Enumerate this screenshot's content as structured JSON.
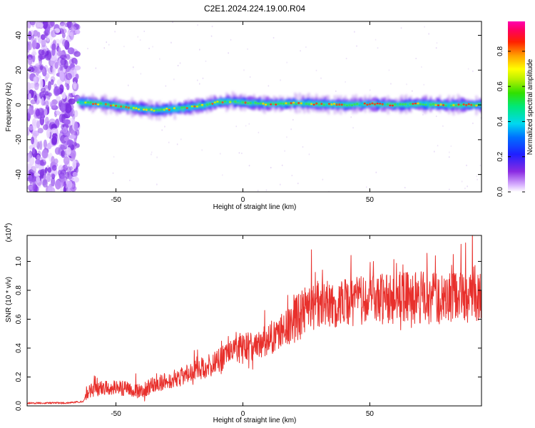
{
  "title": "C2E1.2024.224.19.00.R04",
  "chart_data": [
    {
      "type": "heatmap",
      "xlabel": "Height of straight line (km)",
      "ylabel": "Frequency (Hz)",
      "xlim": [
        -85,
        94
      ],
      "ylim": [
        -50,
        48
      ],
      "x_ticks": [
        -50,
        0,
        50
      ],
      "y_ticks": [
        -40,
        -20,
        0,
        20,
        40
      ],
      "colorbar": {
        "label": "Normalized spectral amplitude",
        "range": [
          0.0,
          0.97
        ],
        "ticks": [
          "0.0",
          "0.2",
          "0.4",
          "0.6",
          "0.8"
        ],
        "colormap": "rainbow (white-violet-blue-cyan-green-yellow-red-magenta)"
      },
      "ridge": {
        "x_start": -65,
        "x_end": 94,
        "frequency_Hz": [
          [
            -65,
            1.5
          ],
          [
            -55,
            0.5
          ],
          [
            -45,
            -1.5
          ],
          [
            -35,
            -3
          ],
          [
            -25,
            -2
          ],
          [
            -15,
            0
          ],
          [
            -10,
            1.5
          ],
          [
            -5,
            2
          ],
          [
            0,
            1.5
          ],
          [
            10,
            0.5
          ],
          [
            20,
            1
          ],
          [
            30,
            0.5
          ],
          [
            40,
            0
          ],
          [
            50,
            0.5
          ],
          [
            60,
            0
          ],
          [
            70,
            0.5
          ],
          [
            80,
            0
          ],
          [
            94,
            0
          ]
        ]
      },
      "noise_band_x": [
        -85,
        -65
      ]
    },
    {
      "type": "line",
      "xlabel": "Height of straight line (km)",
      "ylabel": "SNR (10 * v/v)",
      "y_scale_label": "(x10^4)",
      "xlim": [
        -85,
        94
      ],
      "ylim": [
        0,
        1.18
      ],
      "x_ticks": [
        -50,
        0,
        50
      ],
      "y_ticks": [
        "0.0",
        "0.2",
        "0.4",
        "0.6",
        "0.8",
        "1.0"
      ],
      "color": "#e8302c",
      "trend": [
        [
          -85,
          0.02
        ],
        [
          -70,
          0.02
        ],
        [
          -63,
          0.03
        ],
        [
          -61,
          0.1
        ],
        [
          -55,
          0.13
        ],
        [
          -45,
          0.12
        ],
        [
          -40,
          0.1
        ],
        [
          -35,
          0.15
        ],
        [
          -25,
          0.2
        ],
        [
          -18,
          0.25
        ],
        [
          -12,
          0.28
        ],
        [
          -6,
          0.35
        ],
        [
          0,
          0.4
        ],
        [
          10,
          0.46
        ],
        [
          18,
          0.55
        ],
        [
          24,
          0.65
        ],
        [
          30,
          0.7
        ],
        [
          40,
          0.72
        ],
        [
          50,
          0.74
        ],
        [
          60,
          0.75
        ],
        [
          70,
          0.75
        ],
        [
          80,
          0.74
        ],
        [
          94,
          0.76
        ]
      ]
    }
  ]
}
